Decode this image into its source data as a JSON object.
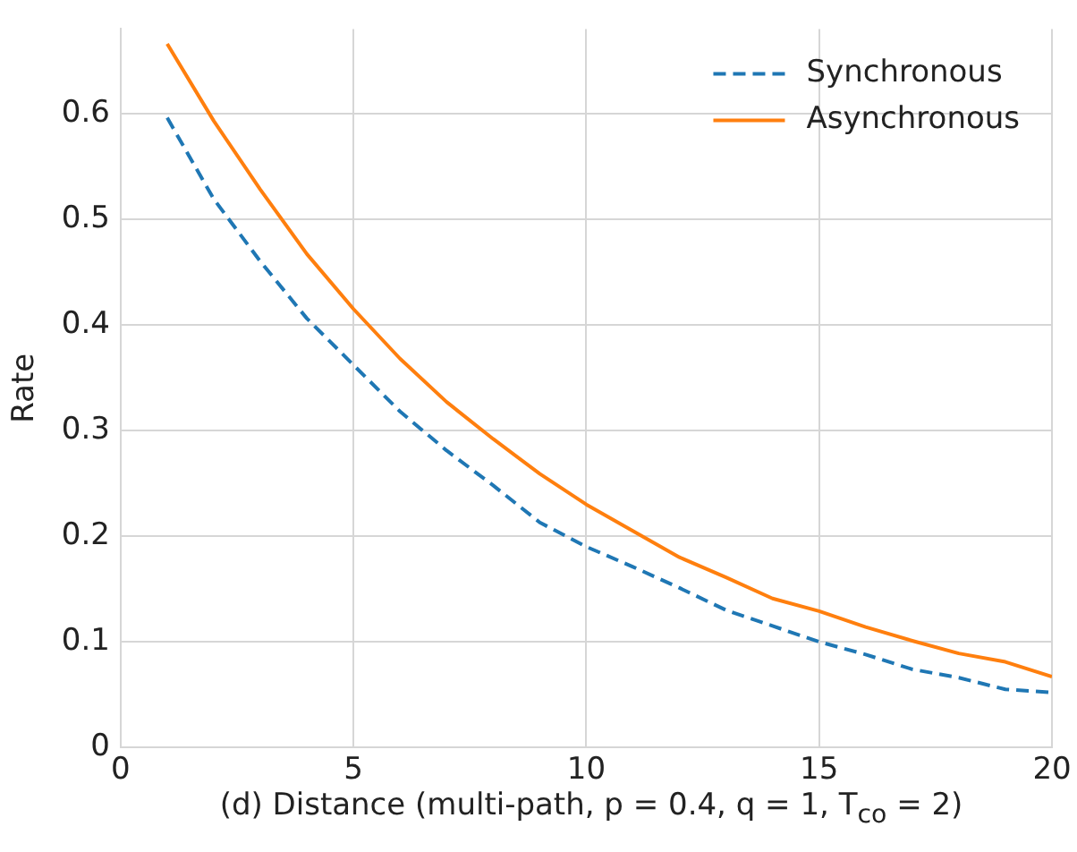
{
  "chart_data": {
    "type": "line",
    "xlabel": "(d) Distance (multi-path, p = 0.4, q = 1, T$_{co}$ = 2)",
    "ylabel": "Rate",
    "x": [
      1,
      2,
      3,
      4,
      5,
      6,
      7,
      8,
      9,
      10,
      11,
      12,
      13,
      14,
      15,
      16,
      17,
      18,
      19,
      20
    ],
    "series": [
      {
        "name": "Synchronous",
        "color": "#1f77b4",
        "line_style": "dashed",
        "values": [
          0.596,
          0.519,
          0.46,
          0.406,
          0.362,
          0.318,
          0.281,
          0.248,
          0.213,
          0.19,
          0.171,
          0.151,
          0.13,
          0.115,
          0.1,
          0.088,
          0.074,
          0.066,
          0.055,
          0.052
        ]
      },
      {
        "name": "Asynchronous",
        "color": "#ff7f0e",
        "line_style": "solid",
        "values": [
          0.666,
          0.593,
          0.528,
          0.467,
          0.415,
          0.368,
          0.327,
          0.292,
          0.259,
          0.23,
          0.205,
          0.18,
          0.161,
          0.141,
          0.129,
          0.114,
          0.101,
          0.089,
          0.081,
          0.067
        ]
      }
    ],
    "xlim": [
      0,
      20
    ],
    "xticks": [
      0,
      5,
      10,
      15,
      20
    ],
    "ylim": [
      0,
      0.68
    ],
    "yticks": [
      0,
      0.1,
      0.2,
      0.3,
      0.4,
      0.5,
      0.6
    ],
    "grid": true,
    "legend": "top right",
    "marker": "none"
  }
}
